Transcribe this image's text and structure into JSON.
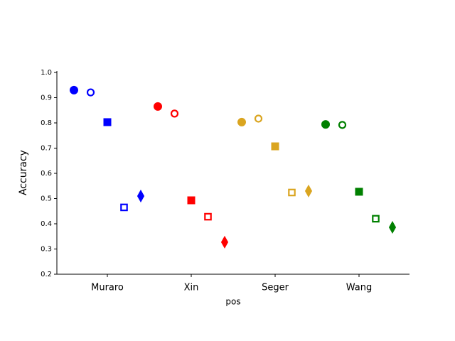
{
  "chart_data": {
    "type": "dot",
    "y_label": "Accuracy",
    "x_label": "pos",
    "categories": [
      "Muraro",
      "Xin",
      "Seger",
      "Wang"
    ],
    "colors": [
      "#0000ff",
      "#ff0000",
      "#daa520",
      "#008000"
    ],
    "series": [
      {
        "marker": "circle",
        "filled": true,
        "values": [
          0.93,
          0.865,
          0.803,
          0.794
        ]
      },
      {
        "marker": "circle",
        "filled": false,
        "values": [
          0.921,
          0.837,
          0.817,
          0.792
        ]
      },
      {
        "marker": "square",
        "filled": true,
        "values": [
          0.803,
          0.493,
          0.707,
          0.527
        ]
      },
      {
        "marker": "square",
        "filled": false,
        "values": [
          0.465,
          0.428,
          0.524,
          0.42
        ]
      },
      {
        "marker": "diamond",
        "filled": true,
        "values": [
          0.51,
          0.327,
          0.53,
          0.386
        ]
      }
    ],
    "ylim": [
      0.2,
      1.0
    ],
    "yticks": [
      0.2,
      0.3,
      0.4,
      0.5,
      0.6,
      0.7,
      0.8,
      0.9,
      {
        "value": 1.0,
        "label": "1.0"
      }
    ]
  }
}
